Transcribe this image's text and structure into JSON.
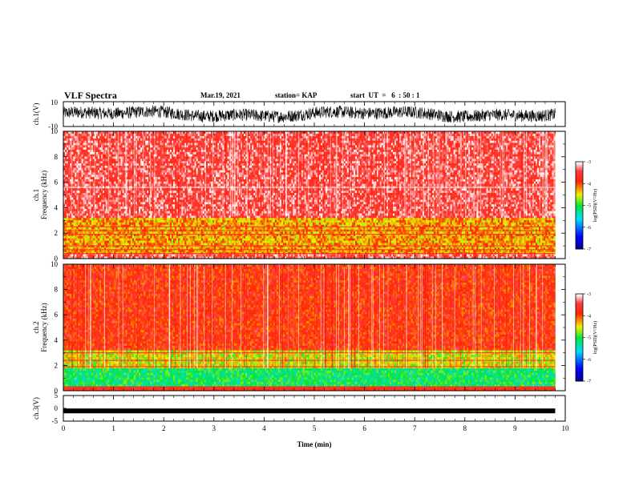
{
  "header": {
    "title": "VLF Spectra",
    "date": "Mar.19, 2021",
    "station": "station= KAP",
    "start": "start  UT  =   6  : 50 : 1"
  },
  "chart_data": [
    {
      "type": "line",
      "ylabel": "ch.1(V)",
      "ylim": [
        -10,
        10
      ],
      "yticks": [
        "10",
        "-10"
      ],
      "xlim": [
        0,
        10
      ],
      "series": [
        {
          "desc": "dense noisy waveform oscillating mostly between -6 and 5 V",
          "color": "#000000"
        }
      ]
    },
    {
      "type": "heatmap",
      "ylabel": "ch.1 Frequency  (kHz)",
      "ylim": [
        0,
        10
      ],
      "yticks": [
        "0",
        "2",
        "4",
        "6",
        "8",
        "10"
      ],
      "xlim": [
        0,
        9.8
      ],
      "bands": [
        {
          "from": 0.0,
          "to": 0.3,
          "level": "red/white"
        },
        {
          "from": 0.3,
          "to": 3.2,
          "level": "yellow-green with red lines"
        },
        {
          "from": 3.2,
          "to": 10.0,
          "level": "red/white"
        }
      ],
      "colorbar": {
        "label": "log(PSD)(V²/Hz)",
        "ticks": [
          "-3",
          "-4",
          "-5",
          "-6",
          "-7"
        ],
        "range": [
          -7,
          -3
        ]
      }
    },
    {
      "type": "heatmap",
      "ylabel": "ch.2 Frequency  (kHz)",
      "ylim": [
        0,
        10
      ],
      "yticks": [
        "0",
        "2",
        "4",
        "6",
        "8",
        "10"
      ],
      "xlim": [
        0,
        9.8
      ],
      "bands": [
        {
          "from": 0.0,
          "to": 1.7,
          "level": "green/cyan"
        },
        {
          "from": 1.7,
          "to": 3.2,
          "level": "yellow-green"
        },
        {
          "from": 3.2,
          "to": 10.0,
          "level": "red with yellow"
        }
      ],
      "colorbar": {
        "label": "log(PSD)(V²/Hz)",
        "ticks": [
          "-3",
          "-4",
          "-5",
          "-6",
          "-7"
        ],
        "range": [
          -7,
          -3
        ]
      }
    },
    {
      "type": "line",
      "ylabel": "ch.3(V)",
      "ylim": [
        -5,
        5
      ],
      "yticks": [
        "5",
        "0",
        "-5"
      ],
      "xlim": [
        0,
        10
      ],
      "xlabel": "Time  (min)",
      "xticks": [
        "0",
        "1",
        "2",
        "3",
        "4",
        "5",
        "6",
        "7",
        "8",
        "9",
        "10"
      ],
      "series": [
        {
          "desc": "thick flat band near -1 V",
          "value": -1,
          "color": "#000000"
        }
      ]
    }
  ]
}
